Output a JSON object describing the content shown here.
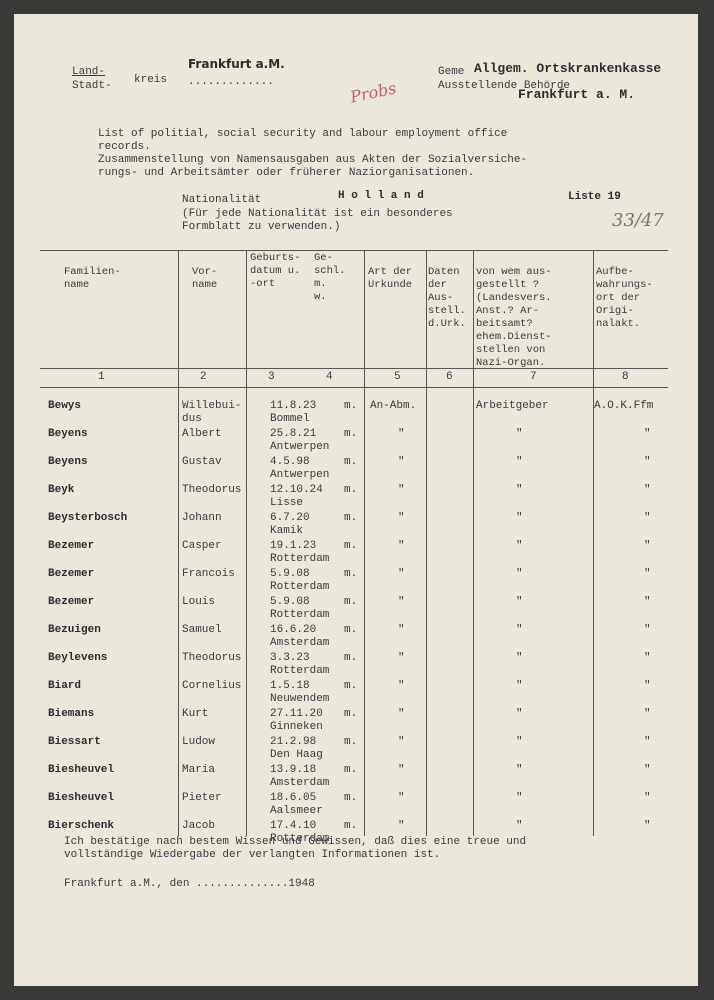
{
  "header": {
    "stamp_city": "Frankfurt a.M.",
    "land": "Land-",
    "stadt": "Stadt-",
    "kreis": "kreis",
    "gemeinde": "Geme",
    "behoerde": "Ausstellende Behörde",
    "stamp_name": "Allgem. Ortskrankenkasse",
    "stamp_city2": "Frankfurt a. M.",
    "handwritten": "Probs"
  },
  "intro": {
    "english": "List of politial, social security and labour employment office\nrecords.",
    "german": "Zusammenstellung von Namensausgaben aus Akten der Sozialversiche-\nrungs- und Arbeitsämter oder früherer Naziorganisationen."
  },
  "nationality": {
    "label": "Nationalität",
    "value": "H o l l a n d",
    "list": "Liste 19",
    "note": "(Für jede Nationalität ist ein besonderes\n Formblatt zu verwenden.)",
    "handwritten": "33/47"
  },
  "table": {
    "headers": [
      "Familien-\nname",
      "Vor-\nname",
      "Geburts-\ndatum u.\n-ort",
      "Ge-\nschl.\nm.\nw.",
      "Art der\nUrkunde",
      "Daten\nder\nAus-\nstell.\nd.Urk.",
      "von wem aus-\ngestellt ?\n(Landesvers.\nAnst.? Ar-\nbeitsamt?\nehem.Dienst-\nstellen von\nNazi-Organ.",
      "Aufbe-\nwahrungs-\nort der\nOrigi-\nnalakt."
    ],
    "numbers": [
      "1",
      "2",
      "3",
      "4",
      "5",
      "6",
      "7",
      "8"
    ],
    "rows": [
      [
        "Bewys",
        "Willebui-\ndus",
        "11.8.23",
        "m.",
        "Bommel",
        "An-Abm.",
        "Arbeitgeber",
        "A.O.K.Ffm"
      ],
      [
        "Beyens",
        "Albert",
        "25.8.21",
        "m.",
        "Antwerpen",
        "\"",
        "\"",
        "\""
      ],
      [
        "Beyens",
        "Gustav",
        "4.5.98",
        "m.",
        "Antwerpen",
        "\"",
        "\"",
        "\""
      ],
      [
        "Beyk",
        "Theodorus",
        "12.10.24",
        "m.",
        "Lisse",
        "\"",
        "\"",
        "\""
      ],
      [
        "Beysterbosch",
        "Johann",
        "6.7.20",
        "m.",
        "Kamik",
        "\"",
        "\"",
        "\""
      ],
      [
        "Bezemer",
        "Casper",
        "19.1.23",
        "m.",
        "Rotterdam",
        "\"",
        "\"",
        "\""
      ],
      [
        "Bezemer",
        "Francois",
        "5.9.08",
        "m.",
        "Rotterdam",
        "\"",
        "\"",
        "\""
      ],
      [
        "Bezemer",
        "Louis",
        "5.9.08",
        "m.",
        "Rotterdam",
        "\"",
        "\"",
        "\""
      ],
      [
        "Bezuigen",
        "Samuel",
        "16.6.20",
        "m.",
        "Amsterdam",
        "\"",
        "\"",
        "\""
      ],
      [
        "Beylevens",
        "Theodorus",
        "3.3.23",
        "m.",
        "Rotterdam",
        "\"",
        "\"",
        "\""
      ],
      [
        "Biard",
        "Cornelius",
        "1.5.18",
        "m.",
        "Neuwendem",
        "\"",
        "\"",
        "\""
      ],
      [
        "Biemans",
        "Kurt",
        "27.11.20",
        "m.",
        "Ginneken",
        "\"",
        "\"",
        "\""
      ],
      [
        "Biessart",
        "Ludow",
        "21.2.98",
        "m.",
        "Den Haag",
        "\"",
        "\"",
        "\""
      ],
      [
        "Biesheuvel",
        "Maria",
        "13.9.18",
        "m.",
        "Amsterdam",
        "\"",
        "\"",
        "\""
      ],
      [
        "Biesheuvel",
        "Pieter",
        "18.6.05",
        "m.",
        "Aalsmeer",
        "\"",
        "\"",
        "\""
      ],
      [
        "Bierschenk",
        "Jacob",
        "17.4.10",
        "m.",
        "Rotterdam",
        "\"",
        "\"",
        "\""
      ]
    ]
  },
  "footer": {
    "statement": "Ich bestätige nach bestem Wissen und Gewissen, daß dies eine treue und\nvollständige Wiedergabe der verlangten Informationen ist.",
    "place_date": "Frankfurt a.M., den ..............1948"
  }
}
